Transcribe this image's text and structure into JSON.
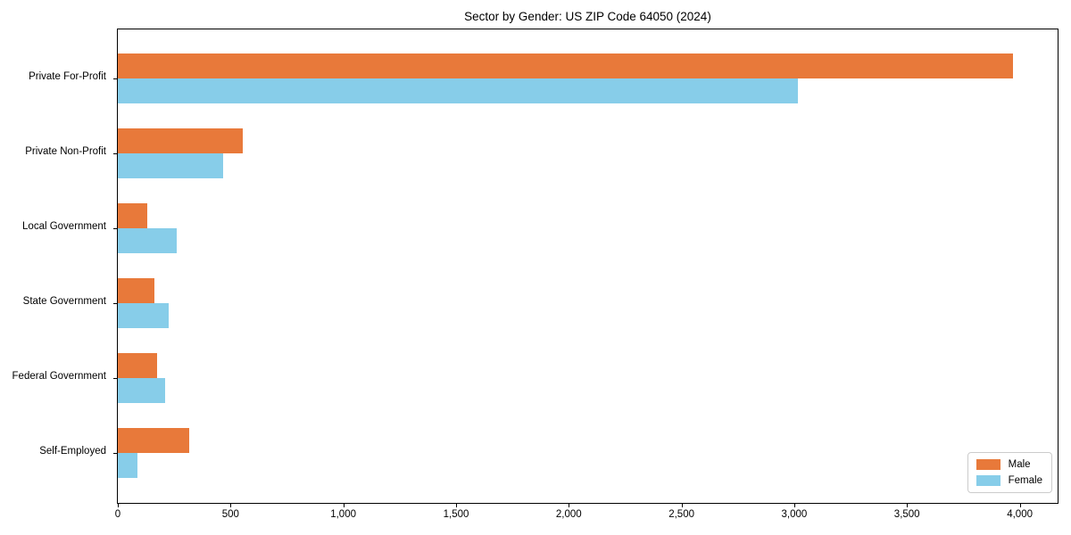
{
  "chart_data": {
    "type": "bar",
    "orientation": "horizontal",
    "title": "Sector by Gender: US ZIP Code 64050 (2024)",
    "categories": [
      "Private For-Profit",
      "Private Non-Profit",
      "Local Government",
      "State Government",
      "Federal Government",
      "Self-Employed"
    ],
    "series": [
      {
        "name": "Male",
        "color": "#e8793a",
        "values": [
          3968,
          553,
          130,
          163,
          172,
          316
        ]
      },
      {
        "name": "Female",
        "color": "#87cde9",
        "values": [
          3016,
          467,
          261,
          226,
          208,
          87
        ]
      }
    ],
    "xlabel": "",
    "ylabel": "",
    "xlim": [
      0,
      4168
    ],
    "xticks": {
      "values": [
        0,
        500,
        1000,
        1500,
        2000,
        2500,
        3000,
        3500,
        4000
      ],
      "labels": [
        "0",
        "500",
        "1,000",
        "1,500",
        "2,000",
        "2,500",
        "3,000",
        "3,500",
        "4,000"
      ]
    },
    "grid": false,
    "legend_position": "lower right"
  }
}
